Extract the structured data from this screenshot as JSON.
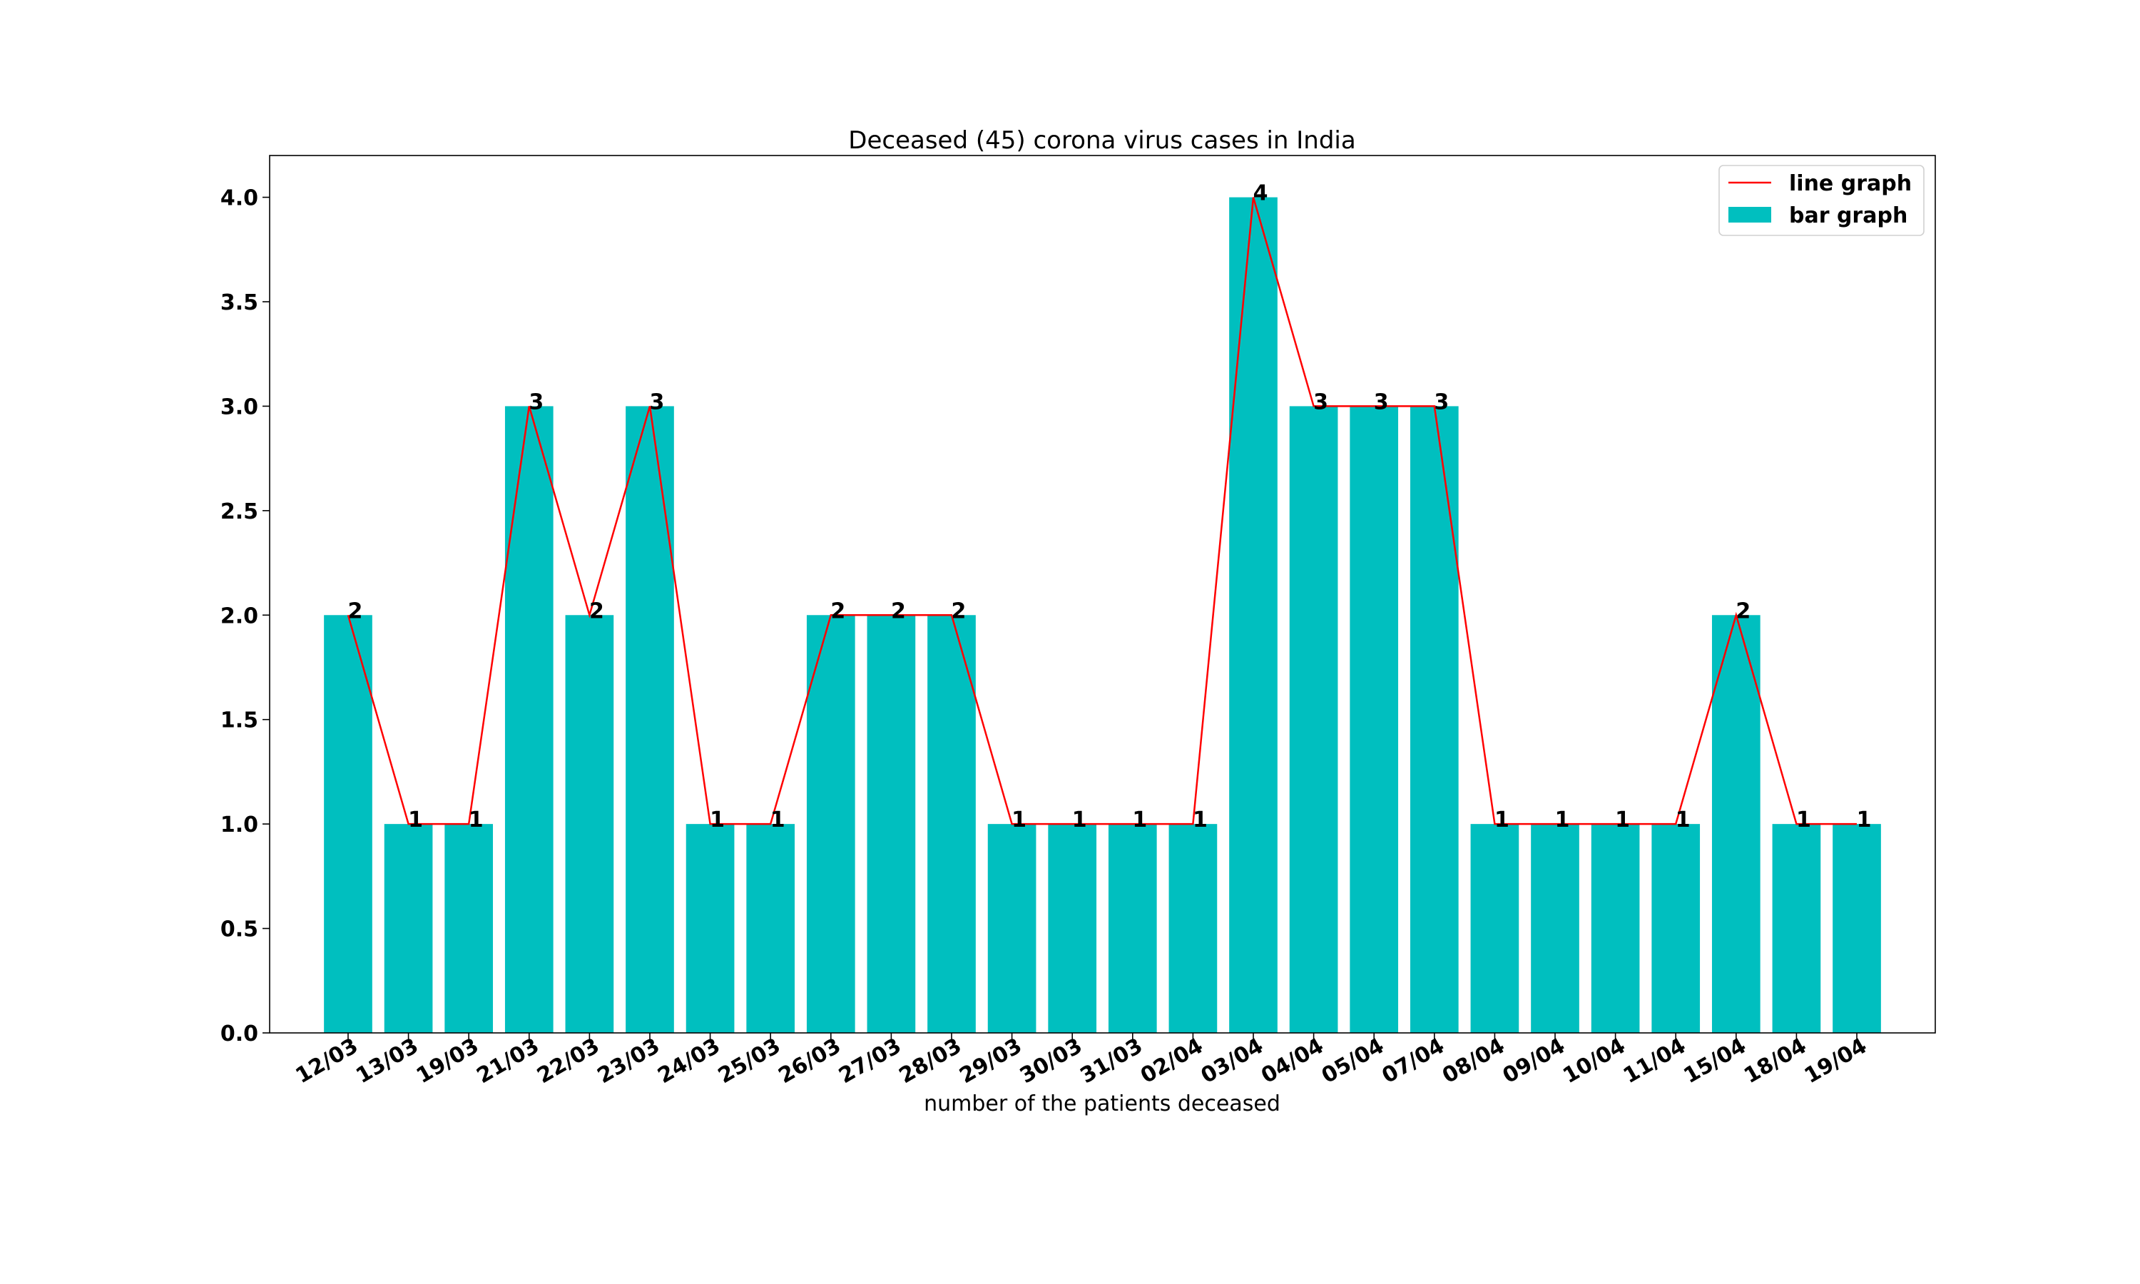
{
  "chart_data": {
    "type": "bar",
    "title": "Deceased (45) corona virus cases in India",
    "xlabel": "number of the patients deceased",
    "ylabel": "",
    "ylim": [
      0,
      4.2
    ],
    "yticks": [
      "0.0",
      "0.5",
      "1.0",
      "1.5",
      "2.0",
      "2.5",
      "3.0",
      "3.5",
      "4.0"
    ],
    "categories": [
      "12/03",
      "13/03",
      "19/03",
      "21/03",
      "22/03",
      "23/03",
      "24/03",
      "25/03",
      "26/03",
      "27/03",
      "28/03",
      "29/03",
      "30/03",
      "31/03",
      "02/04",
      "03/04",
      "04/04",
      "05/04",
      "07/04",
      "08/04",
      "09/04",
      "10/04",
      "11/04",
      "15/04",
      "18/04",
      "19/04"
    ],
    "values": [
      2,
      1,
      1,
      3,
      2,
      3,
      1,
      1,
      2,
      2,
      2,
      1,
      1,
      1,
      1,
      4,
      3,
      3,
      3,
      1,
      1,
      1,
      1,
      2,
      1,
      1
    ],
    "data_labels": [
      "2",
      "1",
      "1",
      "3",
      "2",
      "3",
      "1",
      "1",
      "2",
      "2",
      "2",
      "1",
      "1",
      "1",
      "1",
      "4",
      "3",
      "3",
      "3",
      "1",
      "1",
      "1",
      "1",
      "2",
      "1",
      "1"
    ],
    "series": [
      {
        "name": "line graph",
        "kind": "line",
        "color": "#ff0000"
      },
      {
        "name": "bar graph",
        "kind": "bar",
        "color": "#00bfbf"
      }
    ],
    "legend": "top-right",
    "grid": false
  }
}
